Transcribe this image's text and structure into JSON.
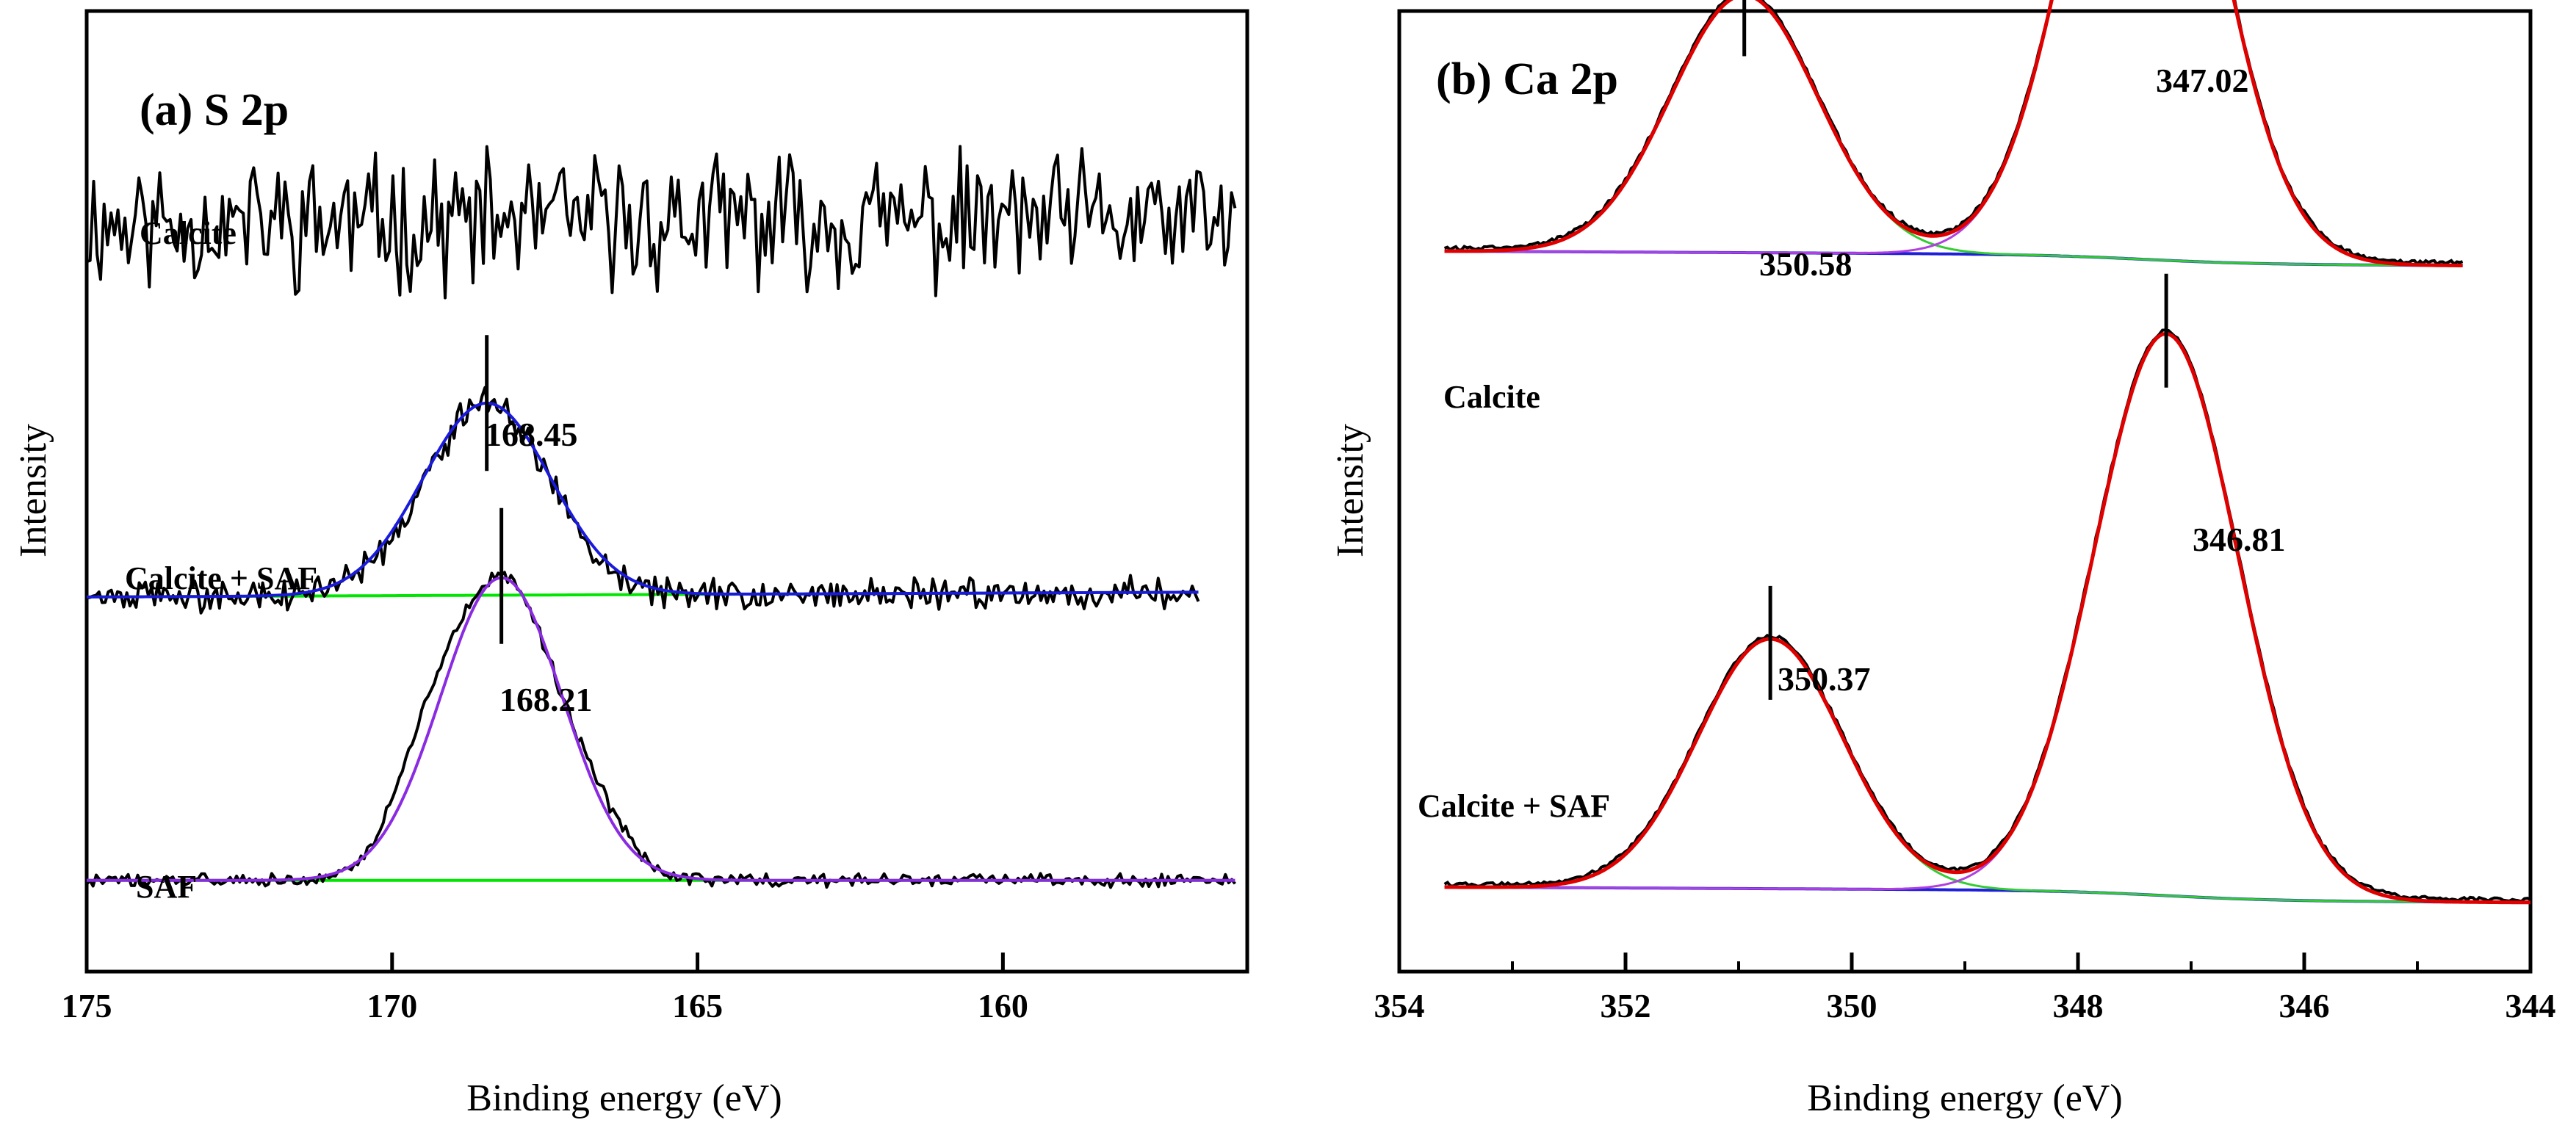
{
  "colors": {
    "raw": "#000000",
    "background_fit": "#00e600",
    "fit_blue": "#1a1adc",
    "fit_purple": "#8a2be2",
    "envelope_red": "#e00000",
    "ca_baseline": "#1f1fd8",
    "component_purple": "#b040e0",
    "component_green": "#33cc33"
  },
  "chart_data": [
    {
      "type": "line",
      "panel": "a",
      "title": "(a) S 2p",
      "xlabel": "Binding energy (eV)",
      "ylabel": "Intensity",
      "xlim": [
        175,
        156
      ],
      "xticks": [
        175,
        170,
        165,
        160
      ],
      "grid": false,
      "series": [
        {
          "name": "Calcite",
          "kind": "noisy-flat",
          "x_range": [
            175,
            156.2
          ],
          "baseline": 0.78,
          "noise": 0.055
        },
        {
          "name": "Calcite + SAF",
          "kind": "peak",
          "x_range": [
            175,
            156.8
          ],
          "peak_value": 168.45,
          "peak_label": "168.45",
          "peak_height": 0.2,
          "baseline_start": 0.39,
          "baseline_end": 0.395,
          "sigma": 1.0,
          "noise": 0.012,
          "fit_color_key": "fit_blue"
        },
        {
          "name": "SAF",
          "kind": "peak",
          "x_range": [
            175,
            156.2
          ],
          "peak_value": 168.21,
          "peak_label": "168.21",
          "peak_height": 0.315,
          "baseline_start": 0.095,
          "baseline_end": 0.095,
          "sigma": 0.95,
          "noise": 0.006,
          "fit_color_key": "fit_purple"
        }
      ]
    },
    {
      "type": "line",
      "panel": "b",
      "title": "(b) Ca 2p",
      "xlabel": "Binding energy (eV)",
      "ylabel": "Intensity",
      "xlim": [
        354,
        344
      ],
      "xticks": [
        354,
        352,
        350,
        348,
        346,
        344
      ],
      "grid": false,
      "series": [
        {
          "name": "Calcite",
          "x_range": [
            353.6,
            344.6
          ],
          "baseline_start": 0.75,
          "baseline_end": 0.735,
          "peaks": [
            {
              "value": 350.58,
              "label": "350.58",
              "fit_center": 350.95,
              "height": 0.268,
              "sigma": 0.65
            },
            {
              "value": 347.02,
              "label": "347.02",
              "fit_center": 347.42,
              "height": 0.595,
              "sigma": 0.64
            }
          ]
        },
        {
          "name": "Calcite + SAF",
          "x_range": [
            353.6,
            344.0
          ],
          "baseline_start": 0.088,
          "baseline_end": 0.072,
          "peaks": [
            {
              "value": 350.37,
              "label": "350.37",
              "fit_center": 350.72,
              "height": 0.26,
              "sigma": 0.64
            },
            {
              "value": 346.81,
              "label": "346.81",
              "fit_center": 347.22,
              "height": 0.585,
              "sigma": 0.64
            }
          ]
        }
      ]
    }
  ]
}
